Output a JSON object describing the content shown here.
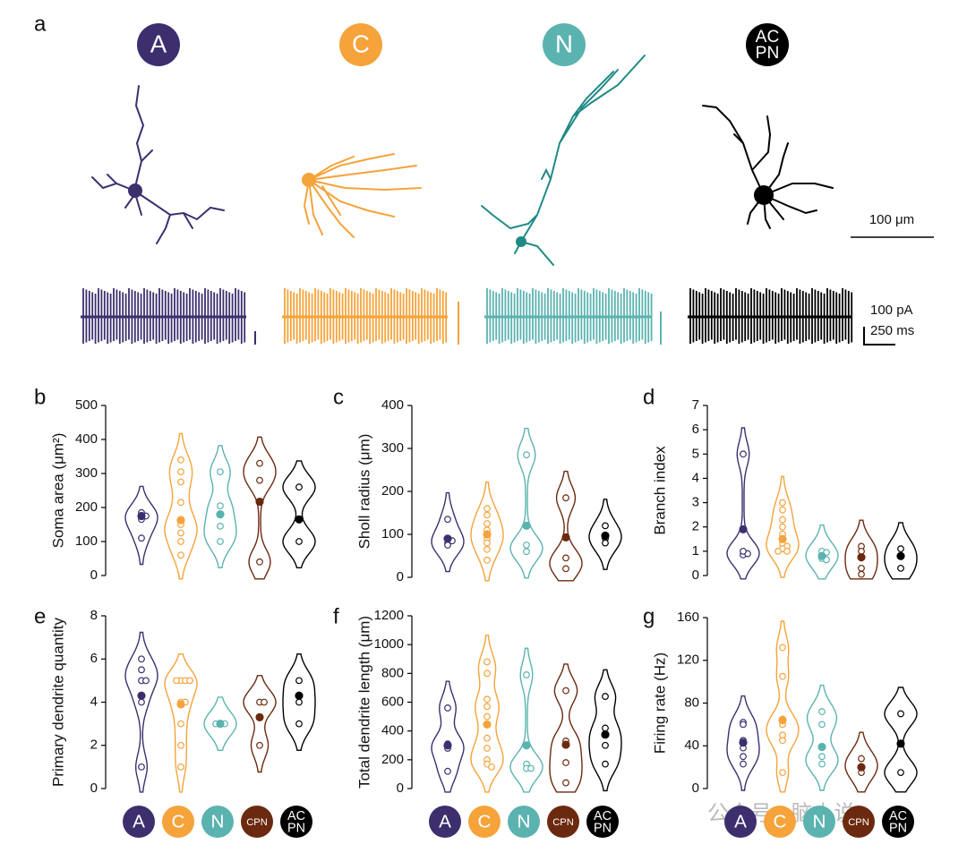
{
  "panel_a": {
    "panel": "a",
    "scale_morph": "100 μm",
    "scale_current": "100 pA",
    "scale_time": "250 ms"
  },
  "groups": [
    {
      "label": [
        "A"
      ],
      "color": "#3d2f6e"
    },
    {
      "label": [
        "C"
      ],
      "color": "#f5a33a"
    },
    {
      "label": [
        "N"
      ],
      "color": "#5bb3b0"
    },
    {
      "label": [
        "CPN"
      ],
      "color": "#6b2a0f"
    },
    {
      "label": [
        "AC",
        "PN"
      ],
      "color": "#000000"
    }
  ],
  "watermark": "公众号 · 脑人说",
  "chart_data": [
    {
      "type": "violin",
      "panel": "b",
      "ylabel": "Soma area (μm²)",
      "ylim": [
        0,
        500
      ],
      "yticks": [
        0,
        100,
        200,
        300,
        400,
        500
      ],
      "series": [
        {
          "values": [
            165,
            185,
            110,
            175
          ],
          "mean": 175
        },
        {
          "values": [
            340,
            305,
            275,
            215,
            160,
            150,
            125,
            100,
            60
          ],
          "mean": 163
        },
        {
          "values": [
            305,
            205,
            145,
            100
          ],
          "mean": 180
        },
        {
          "values": [
            330,
            280,
            40
          ],
          "mean": 217
        },
        {
          "values": [
            260,
            100
          ],
          "mean": 165
        }
      ]
    },
    {
      "type": "violin",
      "panel": "c",
      "ylabel": "Sholl radius (μm)",
      "ylim": [
        0,
        400
      ],
      "yticks": [
        0,
        100,
        200,
        300,
        400
      ],
      "series": [
        {
          "values": [
            135,
            80,
            75,
            85
          ],
          "mean": 90
        },
        {
          "values": [
            160,
            145,
            125,
            110,
            100,
            90,
            80,
            65,
            40
          ],
          "mean": 100
        },
        {
          "values": [
            285,
            75,
            60
          ],
          "mean": 120
        },
        {
          "values": [
            185,
            45,
            20
          ],
          "mean": 93
        },
        {
          "values": [
            120,
            90,
            80
          ],
          "mean": 97
        }
      ]
    },
    {
      "type": "violin",
      "panel": "d",
      "ylabel": "Branch index",
      "ylim": [
        0,
        7
      ],
      "yticks": [
        0,
        1,
        2,
        3,
        4,
        5,
        6,
        7
      ],
      "series": [
        {
          "values": [
            5,
            0.85,
            0.9,
            1.0
          ],
          "mean": 1.9
        },
        {
          "values": [
            3,
            2.7,
            2.3,
            2,
            1.7,
            1.3,
            1.2,
            1.1,
            1.0,
            1.0
          ],
          "mean": 1.5
        },
        {
          "values": [
            1.0,
            0.95,
            0.7,
            0.65
          ],
          "mean": 0.8
        },
        {
          "values": [
            1.2,
            1.0,
            0.3,
            0.05
          ],
          "mean": 0.75
        },
        {
          "values": [
            1.1,
            0.3
          ],
          "mean": 0.8
        }
      ]
    },
    {
      "type": "violin",
      "panel": "e",
      "ylabel": "Primary dendrite quantity",
      "ylim": [
        0,
        8
      ],
      "yticks": [
        0,
        2,
        4,
        6,
        8
      ],
      "series": [
        {
          "values": [
            6,
            5.5,
            5,
            5,
            4,
            1
          ],
          "mean": 4.3
        },
        {
          "values": [
            5,
            5,
            5,
            5,
            4,
            4,
            3,
            2,
            1
          ],
          "mean": 3.9
        },
        {
          "values": [
            3,
            3,
            3
          ],
          "mean": 3
        },
        {
          "values": [
            4,
            4,
            2
          ],
          "mean": 3.3
        },
        {
          "values": [
            5,
            4,
            3
          ],
          "mean": 4.3
        }
      ]
    },
    {
      "type": "violin",
      "panel": "f",
      "ylabel": "Total dendrite length (μm)",
      "ylim": [
        0,
        1200
      ],
      "yticks": [
        0,
        200,
        400,
        600,
        800,
        1000,
        1200
      ],
      "series": [
        {
          "values": [
            560,
            310,
            280,
            120
          ],
          "mean": 300
        },
        {
          "values": [
            880,
            800,
            620,
            570,
            500,
            350,
            280,
            200,
            170,
            150
          ],
          "mean": 445
        },
        {
          "values": [
            790,
            170,
            140,
            140
          ],
          "mean": 300
        },
        {
          "values": [
            680,
            330,
            180,
            40
          ],
          "mean": 305
        },
        {
          "values": [
            640,
            420,
            300,
            170
          ],
          "mean": 375
        }
      ]
    },
    {
      "type": "violin",
      "panel": "g",
      "ylabel": "Firing rate (Hz)",
      "ylim": [
        0,
        160
      ],
      "yticks": [
        0,
        40,
        80,
        120,
        160
      ],
      "series": [
        {
          "values": [
            62,
            60,
            45,
            38,
            30,
            23
          ],
          "mean": 43
        },
        {
          "values": [
            132,
            105,
            65,
            60,
            50,
            45,
            15
          ],
          "mean": 64
        },
        {
          "values": [
            72,
            60,
            30,
            23
          ],
          "mean": 39
        },
        {
          "values": [
            28,
            15
          ],
          "mean": 20
        },
        {
          "values": [
            70,
            15
          ],
          "mean": 42
        }
      ]
    }
  ]
}
